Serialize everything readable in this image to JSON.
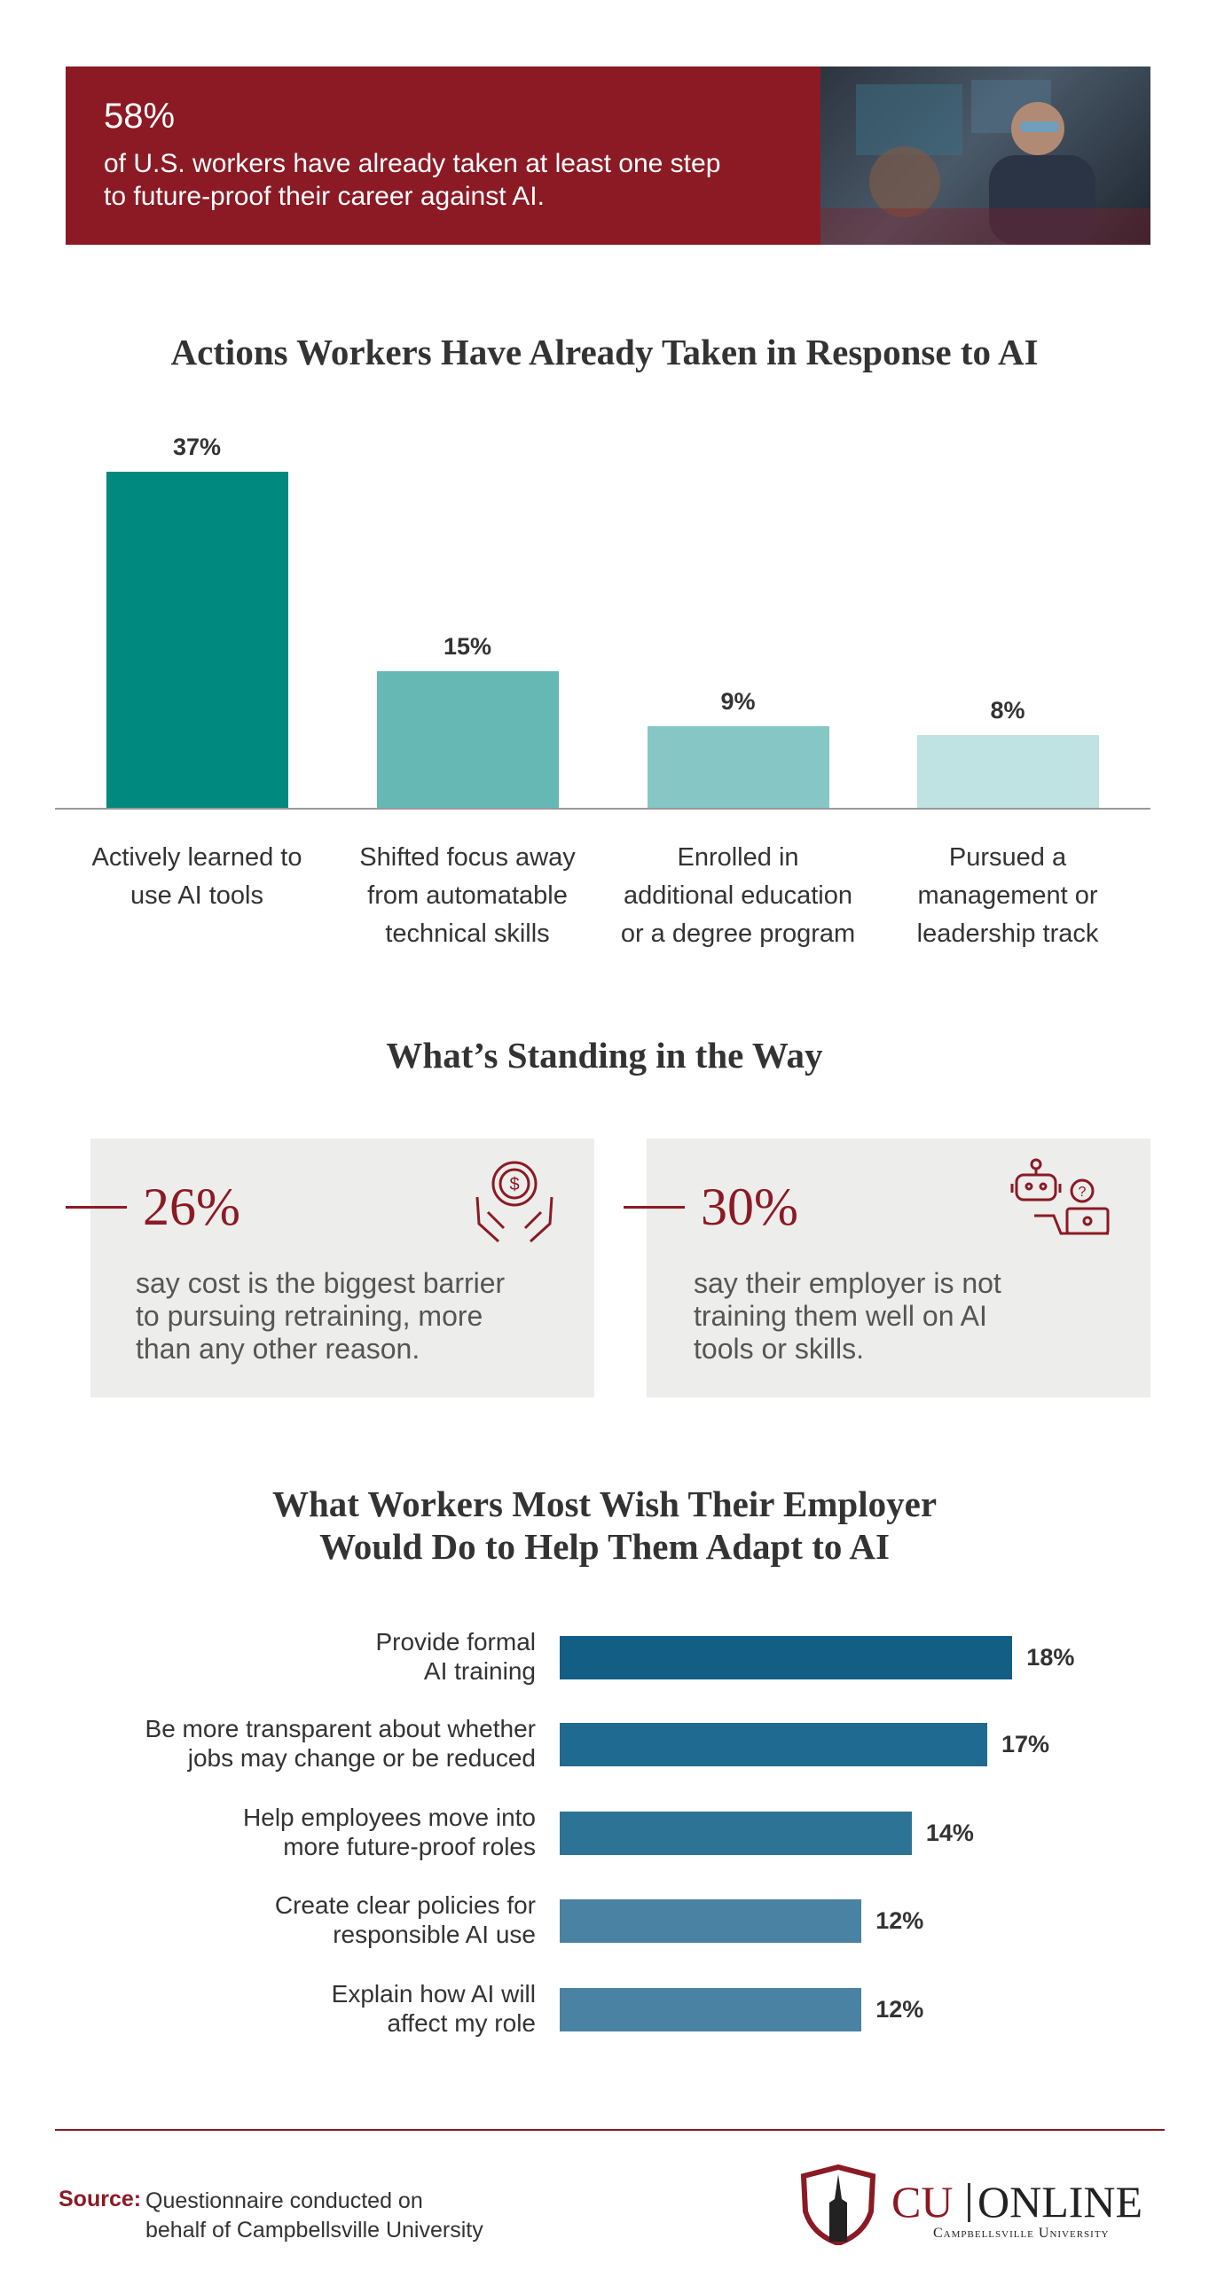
{
  "header": {
    "stat": "58%",
    "text": "of U.S. workers have already taken at least one step\nto future-proof their career against AI."
  },
  "chart_data": [
    {
      "type": "bar",
      "title": "Actions Workers Have Already Taken in Response to AI",
      "categories": [
        "Actively learned to\nuse AI tools",
        "Shifted focus away\nfrom automatable\ntechnical skills",
        "Enrolled in\nadditional education\nor a degree program",
        "Pursued a\nmanagement or\nleadership track"
      ],
      "values": [
        37,
        15,
        9,
        8
      ],
      "value_labels": [
        "37%",
        "15%",
        "9%",
        "8%"
      ],
      "colors": [
        "#00897f",
        "#66b8b4",
        "#86c7c5",
        "#bfe3e3"
      ]
    },
    {
      "type": "barh",
      "title": "What Workers Most Wish Their Employer\nWould Do to Help Them Adapt to AI",
      "categories": [
        "Provide formal\nAI training",
        "Be more transparent about whether\njobs may change or be reduced",
        "Help employees move into\nmore future-proof roles",
        "Create clear policies for\nresponsible AI use",
        "Explain how AI will\naffect my role"
      ],
      "values": [
        18,
        17,
        14,
        12,
        12
      ],
      "value_labels": [
        "18%",
        "17%",
        "14%",
        "12%",
        "12%"
      ],
      "colors": [
        "#135e85",
        "#1f6a90",
        "#2c7396",
        "#4a82a3",
        "#4a82a3"
      ]
    }
  ],
  "barriers": {
    "title": "What’s Standing in the Way",
    "items": [
      {
        "stat": "26%",
        "text": "say cost is the biggest barrier\nto pursuing retraining, more\nthan any other reason."
      },
      {
        "stat": "30%",
        "text": "say their employer is not\ntraining them well on AI\ntools or skills."
      }
    ]
  },
  "source": {
    "label": "Source:",
    "text": "Questionnaire conducted on\nbehalf of Campbellsville University"
  },
  "logo": {
    "cu": "CU",
    "online": "ONLINE",
    "university": "Campbellsville University"
  }
}
